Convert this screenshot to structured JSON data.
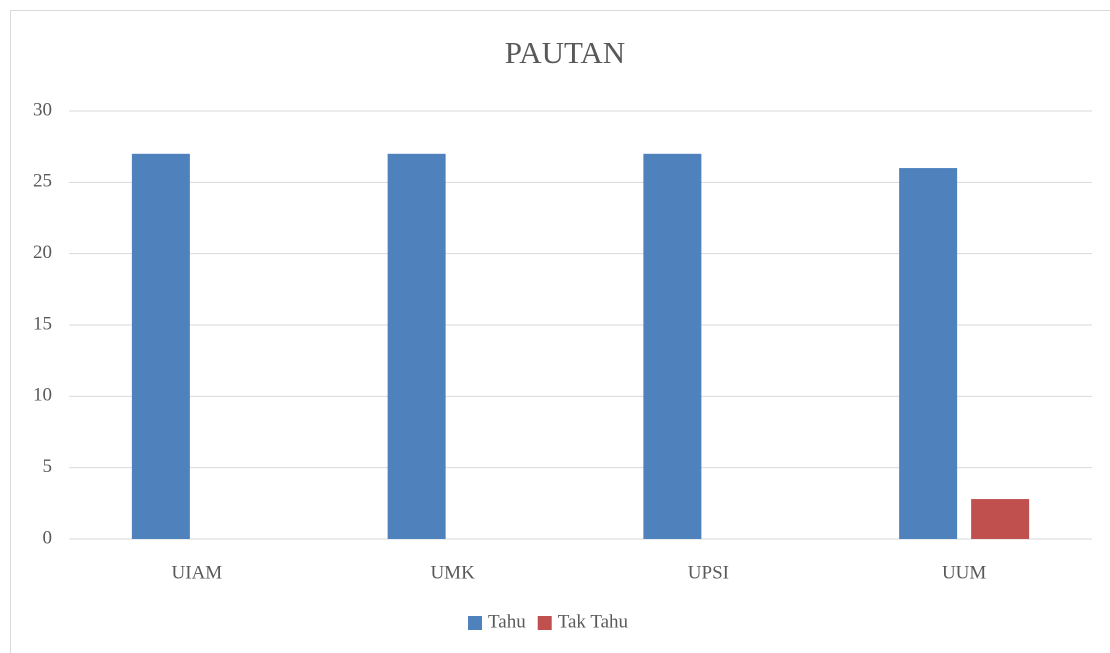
{
  "chart_data": {
    "type": "bar",
    "title": "PAUTAN",
    "categories": [
      "UIAM",
      "UMK",
      "UPSI",
      "UUM"
    ],
    "series": [
      {
        "name": "Tahu",
        "color": "#4f81bd",
        "values": [
          27,
          27,
          27,
          26
        ]
      },
      {
        "name": "Tak Tahu",
        "color": "#c0504d",
        "values": [
          0,
          0,
          0,
          2.8
        ]
      }
    ],
    "ylim": [
      0,
      30
    ],
    "yticks": [
      0,
      5,
      10,
      15,
      20,
      25,
      30
    ],
    "grid": true,
    "legend": "bottom"
  }
}
